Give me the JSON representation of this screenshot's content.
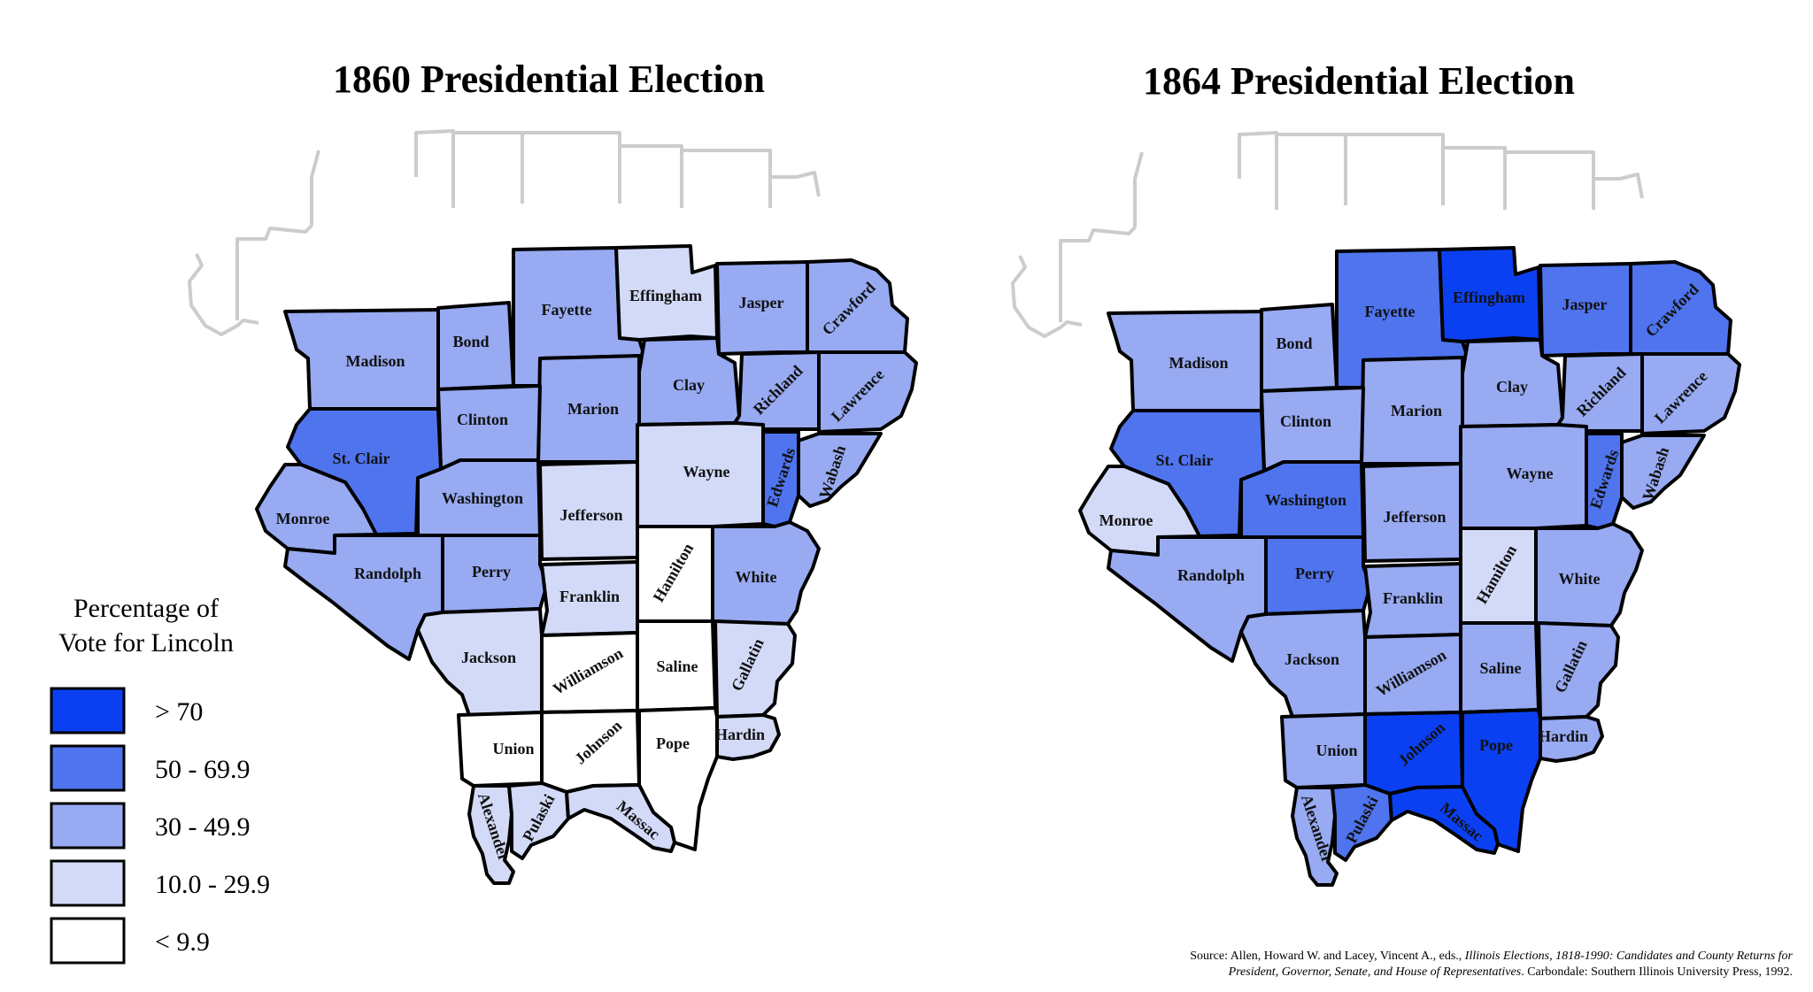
{
  "colors": {
    "gt70": "#0b40f2",
    "c50_69": "#4f74ee",
    "c30_49": "#97aaf2",
    "c10_29": "#d2daf8",
    "lt10": "#ffffff"
  },
  "maps": [
    {
      "title": "1860 Presidential Election",
      "counties": {
        "Madison": "c30_49",
        "Bond": "c30_49",
        "Fayette": "c30_49",
        "Effingham": "c10_29",
        "Jasper": "c30_49",
        "Crawford": "c30_49",
        "Clay": "c30_49",
        "Marion": "c30_49",
        "Clinton": "c30_49",
        "Richland": "c30_49",
        "Lawrence": "c30_49",
        "St. Clair": "c50_69",
        "Washington": "c30_49",
        "Jefferson": "c10_29",
        "Wayne": "c10_29",
        "Edwards": "c50_69",
        "Wabash": "c30_49",
        "Monroe": "c30_49",
        "Randolph": "c30_49",
        "Perry": "c30_49",
        "Franklin": "c10_29",
        "Hamilton": "lt10",
        "White": "c30_49",
        "Jackson": "c10_29",
        "Williamson": "lt10",
        "Saline": "lt10",
        "Gallatin": "c10_29",
        "Union": "lt10",
        "Johnson": "lt10",
        "Pope": "lt10",
        "Hardin": "c10_29",
        "Alexander": "c10_29",
        "Pulaski": "c10_29",
        "Massac": "c10_29"
      }
    },
    {
      "title": "1864 Presidential Election",
      "counties": {
        "Madison": "c30_49",
        "Bond": "c30_49",
        "Fayette": "c50_69",
        "Effingham": "gt70",
        "Jasper": "c50_69",
        "Crawford": "c50_69",
        "Clay": "c30_49",
        "Marion": "c30_49",
        "Clinton": "c30_49",
        "Richland": "c30_49",
        "Lawrence": "c30_49",
        "St. Clair": "c50_69",
        "Washington": "c50_69",
        "Jefferson": "c30_49",
        "Wayne": "c30_49",
        "Edwards": "c50_69",
        "Wabash": "c30_49",
        "Monroe": "c10_29",
        "Randolph": "c30_49",
        "Perry": "c50_69",
        "Franklin": "c30_49",
        "Hamilton": "c10_29",
        "White": "c30_49",
        "Jackson": "c30_49",
        "Williamson": "c30_49",
        "Saline": "c30_49",
        "Gallatin": "c30_49",
        "Union": "c30_49",
        "Johnson": "gt70",
        "Pope": "gt70",
        "Hardin": "c30_49",
        "Alexander": "c30_49",
        "Pulaski": "c50_69",
        "Massac": "gt70"
      }
    }
  ],
  "legend": {
    "title_line1": "Percentage of",
    "title_line2": "Vote for Lincoln",
    "items": [
      {
        "key": "gt70",
        "label": "> 70"
      },
      {
        "key": "c50_69",
        "label": "50 - 69.9"
      },
      {
        "key": "c30_49",
        "label": "30 - 49.9"
      },
      {
        "key": "c10_29",
        "label": "10.0 - 29.9"
      },
      {
        "key": "lt10",
        "label": "< 9.9"
      }
    ]
  },
  "source": {
    "line1_a": "Source: Allen, Howard W. and Lacey, Vincent A., eds., ",
    "line1_b": "Illinois Elections, 1818-1990: Candidates and County Returns for",
    "line2_a": "President, Governor, Senate, and House of Representatives",
    "line2_b": ". Carbondale: Southern Illinois University Press, 1992."
  }
}
